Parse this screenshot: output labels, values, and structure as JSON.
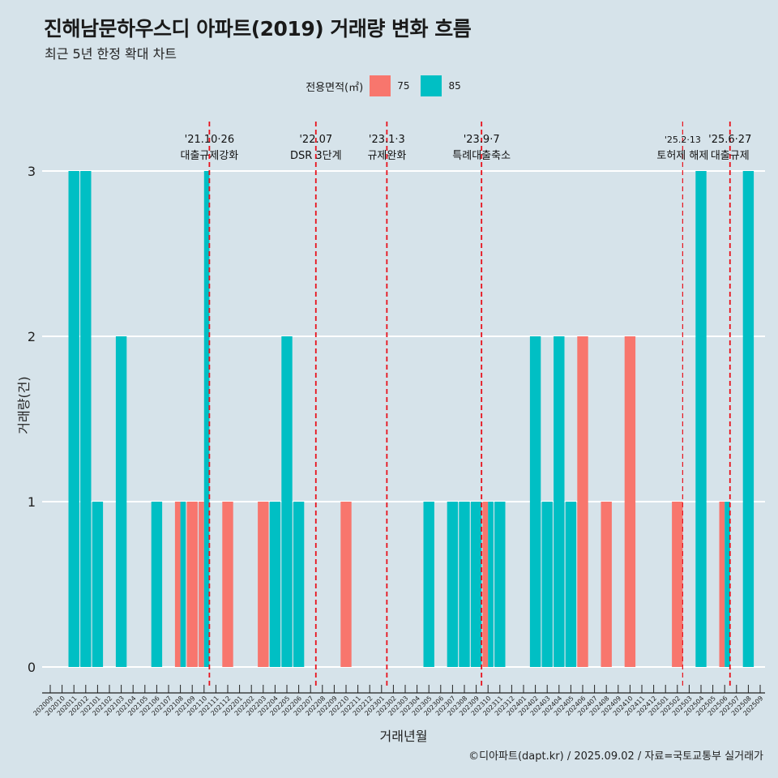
{
  "title": "진해남문하우스디 아파트(2019) 거래량 변화 흐름",
  "subtitle": "최근 5년 한정 확대 차트",
  "caption": "©디아파트(dapt.kr) / 2025.09.02 / 자료=국토교통부 실거래가",
  "legend": {
    "title": "전용면적(㎡)",
    "items": [
      {
        "label": "75",
        "color": "#f8766d"
      },
      {
        "label": "85",
        "color": "#00bfc4"
      }
    ]
  },
  "chart_data": {
    "type": "bar",
    "stacked": false,
    "dodge_within_month": true,
    "xlabel": "거래년월",
    "ylabel": "거래량(건)",
    "ylim": [
      0,
      3
    ],
    "yticks": [
      0,
      1,
      2,
      3
    ],
    "grid": "horizontal major",
    "legend_position": "top",
    "categories": [
      "202009",
      "202010",
      "202011",
      "202012",
      "202101",
      "202102",
      "202103",
      "202104",
      "202105",
      "202106",
      "202107",
      "202108",
      "202109",
      "202110",
      "202111",
      "202112",
      "202201",
      "202202",
      "202203",
      "202204",
      "202205",
      "202206",
      "202207",
      "202208",
      "202209",
      "202210",
      "202211",
      "202212",
      "202301",
      "202302",
      "202303",
      "202304",
      "202305",
      "202306",
      "202307",
      "202308",
      "202309",
      "202310",
      "202311",
      "202312",
      "202401",
      "202402",
      "202403",
      "202404",
      "202405",
      "202406",
      "202407",
      "202408",
      "202409",
      "202410",
      "202411",
      "202412",
      "202501",
      "202502",
      "202503",
      "202504",
      "202505",
      "202506",
      "202507",
      "202508",
      "202509"
    ],
    "series": [
      {
        "name": "75",
        "color": "#f8766d",
        "values": [
          0,
          0,
          0,
          0,
          0,
          0,
          0,
          0,
          0,
          0,
          0,
          1,
          1,
          1,
          0,
          1,
          0,
          0,
          1,
          0,
          0,
          0,
          0,
          0,
          0,
          1,
          0,
          0,
          0,
          0,
          0,
          0,
          0,
          0,
          0,
          0,
          0,
          1,
          0,
          0,
          0,
          0,
          0,
          0,
          0,
          2,
          0,
          1,
          0,
          2,
          0,
          0,
          0,
          1,
          0,
          0,
          0,
          1,
          0,
          0,
          0
        ]
      },
      {
        "name": "85",
        "color": "#00bfc4",
        "values": [
          0,
          0,
          3,
          3,
          1,
          0,
          2,
          0,
          0,
          1,
          0,
          1,
          0,
          3,
          0,
          0,
          0,
          0,
          0,
          1,
          2,
          1,
          0,
          0,
          0,
          0,
          0,
          0,
          0,
          0,
          0,
          0,
          1,
          0,
          1,
          1,
          1,
          1,
          1,
          0,
          0,
          2,
          1,
          2,
          1,
          0,
          0,
          0,
          0,
          0,
          0,
          0,
          0,
          0,
          0,
          3,
          0,
          1,
          0,
          3,
          0
        ]
      }
    ],
    "annotations": [
      {
        "month": "202110",
        "date": "'21.10·26",
        "label": "대출규제강화"
      },
      {
        "month": "202207",
        "date": "'22.07",
        "label": "DSR 3단계"
      },
      {
        "month": "202301",
        "date": "'23.1·3",
        "label": "규제완화"
      },
      {
        "month": "202309",
        "date": "'23.9·7",
        "label": "특례대출축소"
      },
      {
        "month": "202502",
        "date": "'25.2·13",
        "label": "토허제 해제"
      },
      {
        "month": "202506",
        "date": "'25.6·27",
        "label": "대출규제"
      }
    ]
  }
}
